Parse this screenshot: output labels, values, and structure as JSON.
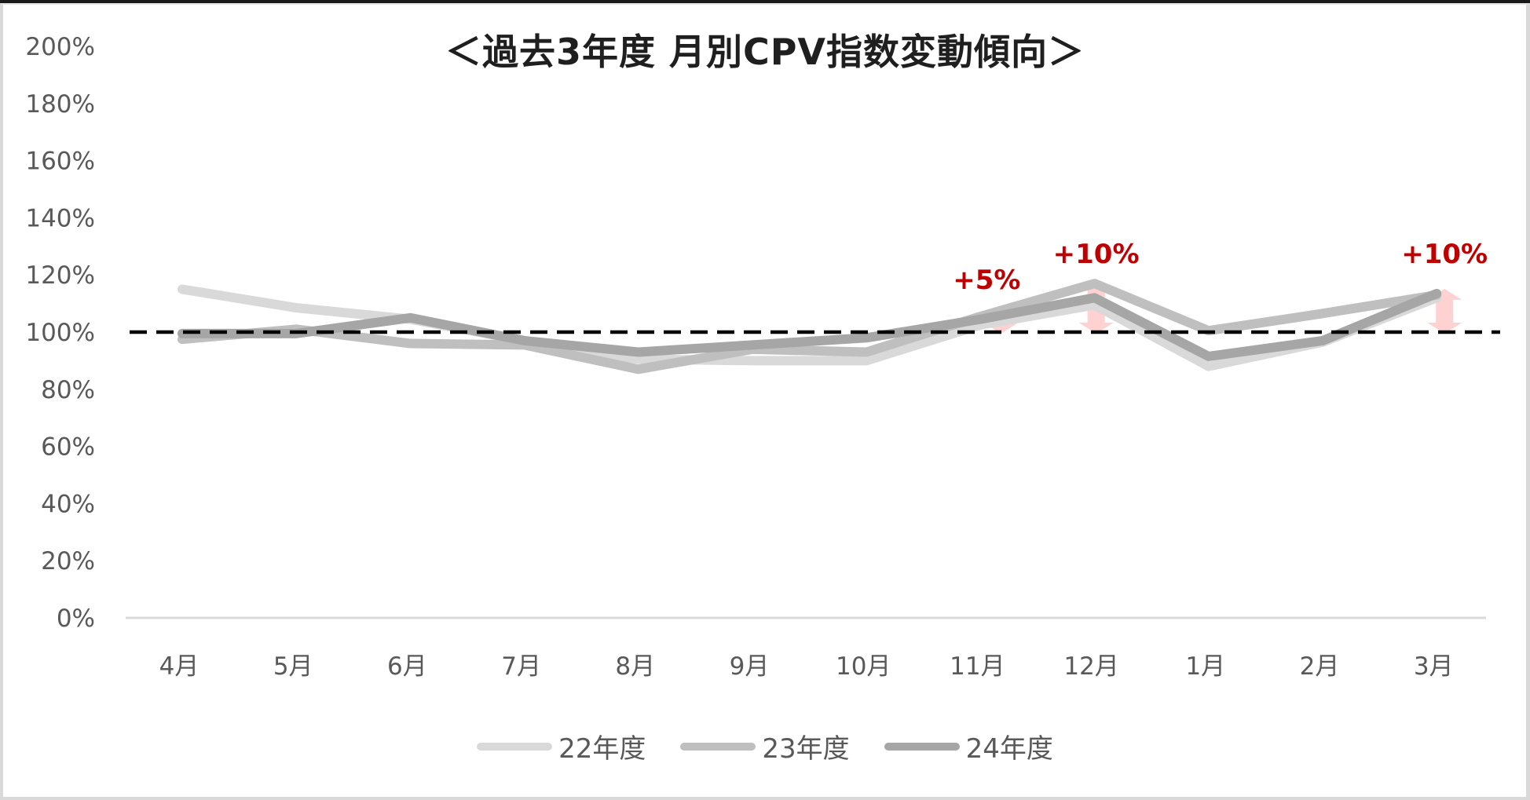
{
  "title": "＜過去3年度 月別CPV指数変動傾向＞",
  "chart_data": {
    "type": "line",
    "title": "＜過去3年度 月別CPV指数変動傾向＞",
    "xlabel": "",
    "ylabel": "",
    "categories": [
      "4月",
      "5月",
      "6月",
      "7月",
      "8月",
      "9月",
      "10月",
      "11月",
      "12月",
      "1月",
      "2月",
      "3月"
    ],
    "y_ticks": [
      "0%",
      "20%",
      "40%",
      "60%",
      "80%",
      "100%",
      "120%",
      "140%",
      "160%",
      "180%",
      "200%"
    ],
    "ylim": [
      0,
      200
    ],
    "grid": false,
    "legend_position": "bottom",
    "series": [
      {
        "name": "22年度",
        "color": "#d9d9d9",
        "values": [
          115,
          108.5,
          104.5,
          97,
          90.5,
          90,
          90,
          102.5,
          109.5,
          88,
          96.5,
          112
        ]
      },
      {
        "name": "23年度",
        "color": "#bfbfbf",
        "values": [
          97.5,
          101,
          96,
          95.5,
          87,
          94,
          93,
          105.5,
          117,
          100.5,
          106.5,
          113
        ]
      },
      {
        "name": "24年度",
        "color": "#a6a6a6",
        "values": [
          99.5,
          99.5,
          105,
          97,
          93,
          95.5,
          98,
          104.5,
          112,
          91.5,
          97,
          113.5
        ]
      }
    ],
    "reference_line": {
      "value": 100,
      "style": "dashed",
      "color": "#000000"
    },
    "annotations": [
      {
        "category": "11月",
        "text": "+5%",
        "color": "#c00000",
        "arrow": "double-headed",
        "arrow_color": "#ffcccc"
      },
      {
        "category": "12月",
        "text": "+10%",
        "color": "#c00000",
        "arrow": "double-headed",
        "arrow_color": "#ffcccc"
      },
      {
        "category": "3月",
        "text": "+10%",
        "color": "#c00000",
        "arrow": "double-headed",
        "arrow_color": "#ffcccc"
      }
    ]
  },
  "legend": [
    {
      "label": "22年度",
      "color": "#d9d9d9"
    },
    {
      "label": "23年度",
      "color": "#bfbfbf"
    },
    {
      "label": "24年度",
      "color": "#a6a6a6"
    }
  ]
}
